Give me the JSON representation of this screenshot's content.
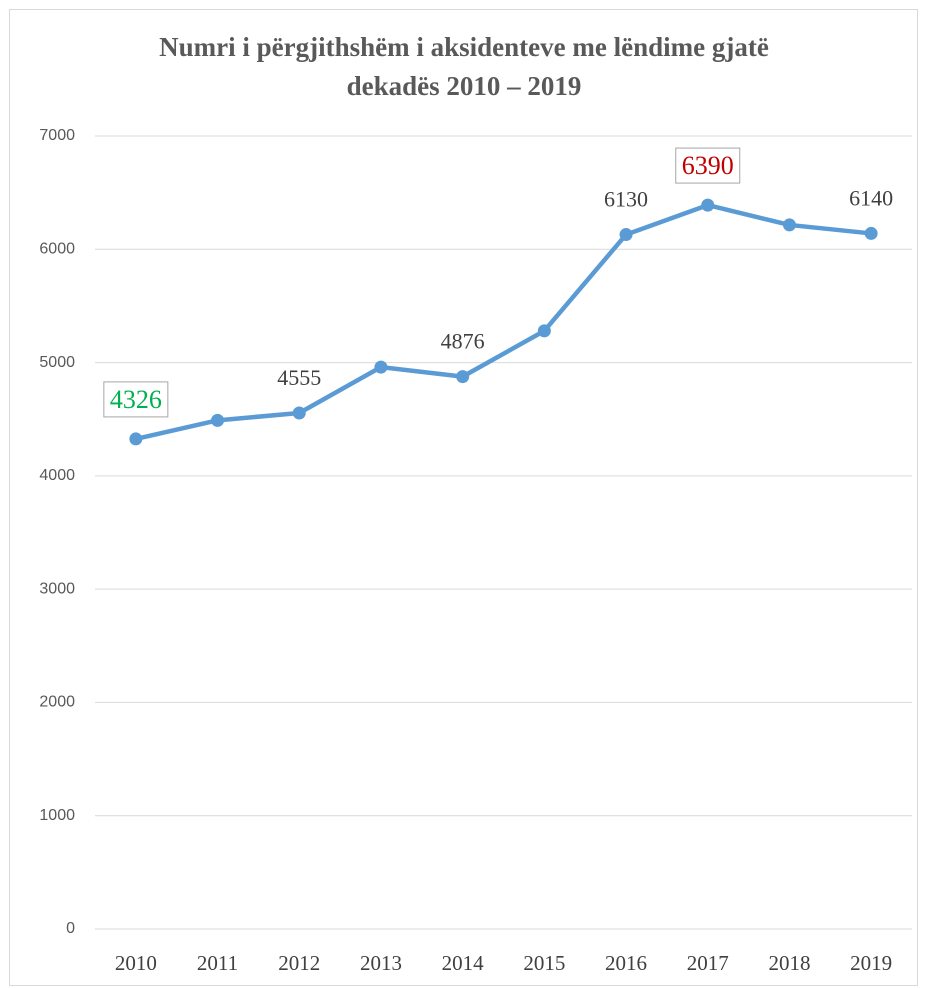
{
  "chart_data": {
    "type": "line",
    "title": [
      "Numri i përgjithshëm i aksidenteve me lëndime gjatë",
      "dekadës 2010 – 2019"
    ],
    "categories": [
      "2010",
      "2011",
      "2012",
      "2013",
      "2014",
      "2015",
      "2016",
      "2017",
      "2018",
      "2019"
    ],
    "values": [
      4326,
      4490,
      4555,
      4960,
      4876,
      5280,
      6130,
      6390,
      6215,
      6140
    ],
    "value_labels": [
      "4326",
      null,
      "4555",
      null,
      "4876",
      null,
      "6130",
      "6390",
      null,
      "6140"
    ],
    "highlights": [
      {
        "index": 0,
        "color": "#00b050"
      },
      {
        "index": 7,
        "color": "#c00000"
      }
    ],
    "color": "#5b9bd5",
    "ylim": [
      0,
      7000
    ],
    "yticks": [
      0,
      1000,
      2000,
      3000,
      4000,
      5000,
      6000,
      7000
    ],
    "grid": true
  }
}
